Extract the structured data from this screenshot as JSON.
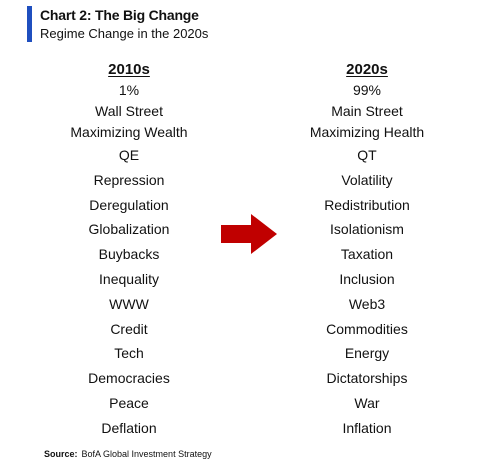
{
  "header": {
    "title": "Chart 2: The Big Change",
    "subtitle": "Regime Change in the 2020s",
    "accent_color": "#1f4fbf"
  },
  "columns": {
    "left": {
      "header": "2010s",
      "items": [
        "1%",
        "Wall Street",
        "Maximizing Wealth",
        "QE",
        "Repression",
        "Deregulation",
        "Globalization",
        "Buybacks",
        "Inequality",
        "WWW",
        "Credit",
        "Tech",
        "Democracies",
        "Peace",
        "Deflation"
      ]
    },
    "right": {
      "header": "2020s",
      "items": [
        "99%",
        "Main Street",
        "Maximizing Health",
        "QT",
        "Volatility",
        "Redistribution",
        "Isolationism",
        "Taxation",
        "Inclusion",
        "Web3",
        "Commodities",
        "Energy",
        "Dictatorships",
        "War",
        "Inflation"
      ]
    }
  },
  "arrow": {
    "icon": "right-arrow-icon",
    "color": "#c00000"
  },
  "source": {
    "label": "Source:",
    "text": "BofA Global Investment Strategy"
  }
}
